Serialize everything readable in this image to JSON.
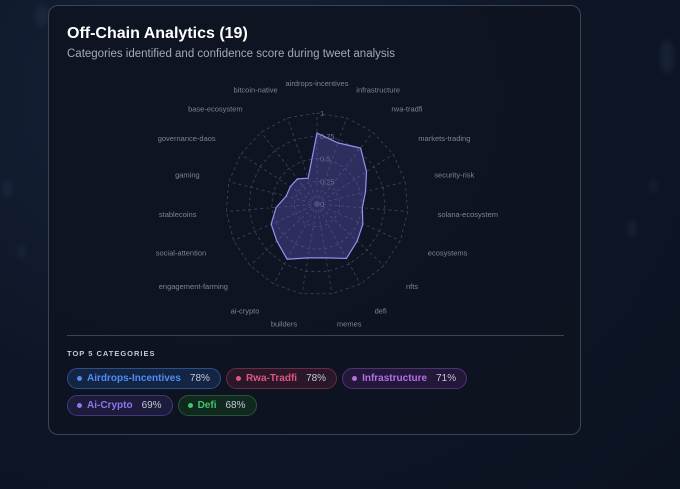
{
  "panel": {
    "title": "Off-Chain Analytics (19)",
    "subtitle": "Categories identified and confidence score during tweet analysis"
  },
  "chart_data": {
    "type": "radar",
    "range": [
      0,
      1
    ],
    "ticks": [
      "0",
      "0.25",
      "0.5",
      "0.75",
      "1"
    ],
    "tick_values": [
      0,
      0.25,
      0.5,
      0.75,
      1
    ],
    "grid": true,
    "axes": [
      "airdrops-incentives",
      "infrastructure",
      "rwa-tradfi",
      "markets-trading",
      "security-risk",
      "solana-ecosystem",
      "ecosystems",
      "nfts",
      "defi",
      "memes",
      "builders",
      "ai-crypto",
      "engagement-farming",
      "social-attention",
      "stablecoins",
      "gaming",
      "governance-daos",
      "base-ecosystem",
      "bitcoin-native"
    ],
    "values": [
      0.78,
      0.71,
      0.78,
      0.65,
      0.55,
      0.5,
      0.55,
      0.6,
      0.68,
      0.6,
      0.6,
      0.69,
      0.6,
      0.55,
      0.45,
      0.35,
      0.35,
      0.35,
      0.3
    ],
    "colors": {
      "fill": "#6b5fd0",
      "stroke": "#9a8ef0",
      "grid": "#3b4660",
      "label": "#7c8496",
      "tick": "#6b7385"
    }
  },
  "top_categories": {
    "heading": "TOP 5 CATEGORIES",
    "items": [
      {
        "name": "Airdrops-Incentives",
        "pct": "78%",
        "color": "#4f8cf7",
        "bg": "#142544",
        "border": "#2c4f86"
      },
      {
        "name": "Rwa-Tradfi",
        "pct": "78%",
        "color": "#e3557f",
        "bg": "#2a1729",
        "border": "#6b2a47"
      },
      {
        "name": "Infrastructure",
        "pct": "71%",
        "color": "#b66ee8",
        "bg": "#23183a",
        "border": "#4c3474"
      },
      {
        "name": "Ai-Crypto",
        "pct": "69%",
        "color": "#8a78ee",
        "bg": "#1d1b3c",
        "border": "#3f3a78"
      },
      {
        "name": "Defi",
        "pct": "68%",
        "color": "#3fc768",
        "bg": "#11281f",
        "border": "#26563a"
      }
    ]
  }
}
